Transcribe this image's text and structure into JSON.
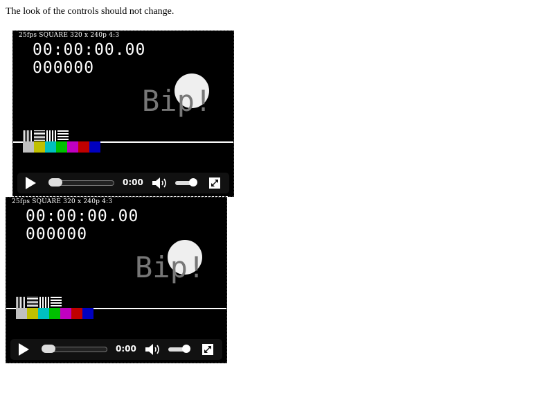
{
  "note": "The look of the controls should not change.",
  "videos": [
    {
      "caption": "25fps SQUARE 320 x 240p 4:3",
      "timecode": "00:00:00.00",
      "frames": "000000",
      "watermark": "Bip!",
      "time_display": "0:00",
      "progress": 0.0,
      "volume": 0.85
    },
    {
      "caption": "25fps SQUARE 320 x 240p 4:3",
      "timecode": "00:00:00.00",
      "frames": "000000",
      "watermark": "Bip!",
      "time_display": "0:00",
      "progress": 0.0,
      "volume": 0.85
    }
  ],
  "color_bars": [
    "#c0c0c0",
    "#c0c000",
    "#00c0c0",
    "#00c000",
    "#c000c0",
    "#c00000",
    "#0000c0"
  ],
  "icons": {
    "play": "play-icon",
    "volume": "speaker-icon",
    "fullscreen": "fullscreen-icon"
  }
}
